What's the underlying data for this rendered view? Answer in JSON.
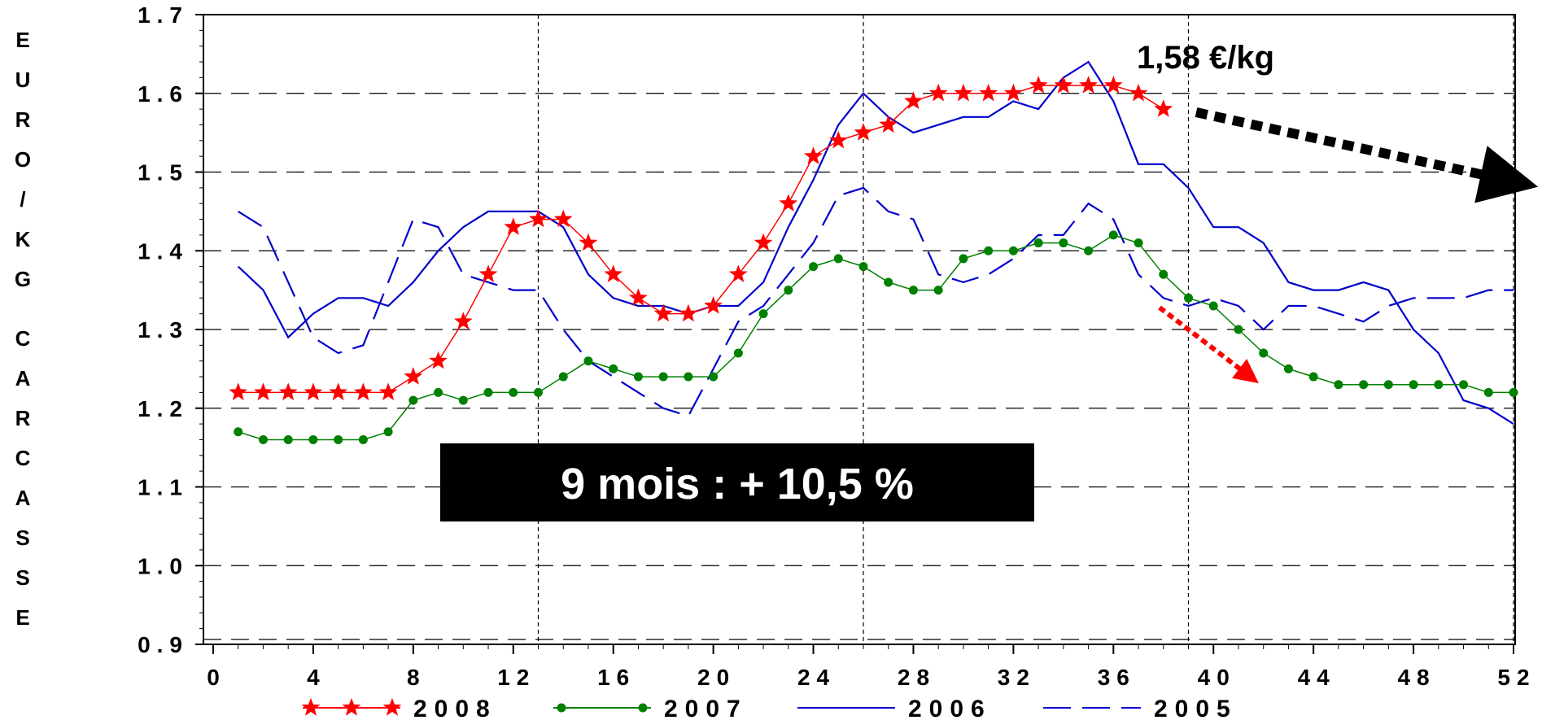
{
  "chart_data": {
    "type": "line",
    "ylabel": "EURO/KG CARCASSE",
    "xlim": [
      0,
      52
    ],
    "ylim": [
      0.9,
      1.7
    ],
    "x_ticks": [
      "0",
      "4",
      "8",
      "12",
      "16",
      "20",
      "24",
      "28",
      "32",
      "36",
      "40",
      "44",
      "48",
      "52"
    ],
    "y_ticks": [
      "0.9",
      "1.0",
      "1.1",
      "1.2",
      "1.3",
      "1.4",
      "1.5",
      "1.6",
      "1.7"
    ],
    "grid": {
      "horizontal": "dashed",
      "vertical_at": [
        13,
        26,
        39,
        52
      ]
    },
    "legend_position": "bottom",
    "series": [
      {
        "name": "2008",
        "color": "#ff0000",
        "marker": "star",
        "x": [
          1,
          2,
          3,
          4,
          5,
          6,
          7,
          8,
          9,
          10,
          11,
          12,
          13,
          14,
          15,
          16,
          17,
          18,
          19,
          20,
          21,
          22,
          23,
          24,
          25,
          26,
          27,
          28,
          29,
          30,
          31,
          32,
          33,
          34,
          35,
          36,
          37,
          38
        ],
        "values": [
          1.22,
          1.22,
          1.22,
          1.22,
          1.22,
          1.22,
          1.22,
          1.24,
          1.26,
          1.31,
          1.37,
          1.43,
          1.44,
          1.44,
          1.41,
          1.37,
          1.34,
          1.32,
          1.32,
          1.33,
          1.37,
          1.41,
          1.46,
          1.52,
          1.54,
          1.55,
          1.56,
          1.59,
          1.6,
          1.6,
          1.6,
          1.6,
          1.61,
          1.61,
          1.61,
          1.61,
          1.6,
          1.58
        ]
      },
      {
        "name": "2007",
        "color": "#008000",
        "marker": "dot",
        "x": [
          1,
          2,
          3,
          4,
          5,
          6,
          7,
          8,
          9,
          10,
          11,
          12,
          13,
          14,
          15,
          16,
          17,
          18,
          19,
          20,
          21,
          22,
          23,
          24,
          25,
          26,
          27,
          28,
          29,
          30,
          31,
          32,
          33,
          34,
          35,
          36,
          37,
          38,
          39,
          40,
          41,
          42,
          43,
          44,
          45,
          46,
          47,
          48,
          49,
          50,
          51,
          52
        ],
        "values": [
          1.17,
          1.16,
          1.16,
          1.16,
          1.16,
          1.16,
          1.17,
          1.21,
          1.22,
          1.21,
          1.22,
          1.22,
          1.22,
          1.24,
          1.26,
          1.25,
          1.24,
          1.24,
          1.24,
          1.24,
          1.27,
          1.32,
          1.35,
          1.38,
          1.39,
          1.38,
          1.36,
          1.35,
          1.35,
          1.39,
          1.4,
          1.4,
          1.41,
          1.41,
          1.4,
          1.42,
          1.41,
          1.37,
          1.34,
          1.33,
          1.3,
          1.27,
          1.25,
          1.24,
          1.23,
          1.23,
          1.23,
          1.23,
          1.23,
          1.23,
          1.22,
          1.22
        ]
      },
      {
        "name": "2006",
        "color": "#0000cc",
        "marker": "none",
        "dash": "solid",
        "x": [
          1,
          2,
          3,
          4,
          5,
          6,
          7,
          8,
          9,
          10,
          11,
          12,
          13,
          14,
          15,
          16,
          17,
          18,
          19,
          20,
          21,
          22,
          23,
          24,
          25,
          26,
          27,
          28,
          29,
          30,
          31,
          32,
          33,
          34,
          35,
          36,
          37,
          38,
          39,
          40,
          41,
          42,
          43,
          44,
          45,
          46,
          47,
          48,
          49,
          50,
          51,
          52
        ],
        "values": [
          1.38,
          1.35,
          1.29,
          1.32,
          1.34,
          1.34,
          1.33,
          1.36,
          1.4,
          1.43,
          1.45,
          1.45,
          1.45,
          1.43,
          1.37,
          1.34,
          1.33,
          1.33,
          1.32,
          1.33,
          1.33,
          1.36,
          1.43,
          1.49,
          1.56,
          1.6,
          1.57,
          1.55,
          1.56,
          1.57,
          1.57,
          1.59,
          1.58,
          1.62,
          1.64,
          1.59,
          1.51,
          1.51,
          1.48,
          1.43,
          1.43,
          1.41,
          1.36,
          1.35,
          1.35,
          1.36,
          1.35,
          1.3,
          1.27,
          1.21,
          1.2,
          1.18
        ]
      },
      {
        "name": "2005",
        "color": "#0000cc",
        "marker": "none",
        "dash": "long-dash",
        "x": [
          1,
          2,
          3,
          4,
          5,
          6,
          7,
          8,
          9,
          10,
          11,
          12,
          13,
          14,
          15,
          16,
          17,
          18,
          19,
          20,
          21,
          22,
          23,
          24,
          25,
          26,
          27,
          28,
          29,
          30,
          31,
          32,
          33,
          34,
          35,
          36,
          37,
          38,
          39,
          40,
          41,
          42,
          43,
          44,
          45,
          46,
          47,
          48,
          49,
          50,
          51,
          52
        ],
        "values": [
          1.45,
          1.43,
          1.36,
          1.29,
          1.27,
          1.28,
          1.36,
          1.44,
          1.43,
          1.37,
          1.36,
          1.35,
          1.35,
          1.3,
          1.26,
          1.24,
          1.22,
          1.2,
          1.19,
          1.25,
          1.31,
          1.33,
          1.37,
          1.41,
          1.47,
          1.48,
          1.45,
          1.44,
          1.37,
          1.36,
          1.37,
          1.39,
          1.42,
          1.42,
          1.46,
          1.44,
          1.37,
          1.34,
          1.33,
          1.34,
          1.33,
          1.3,
          1.33,
          1.33,
          1.32,
          1.31,
          1.33,
          1.34,
          1.34,
          1.34,
          1.35,
          1.35
        ]
      }
    ],
    "annotations": {
      "price_label": "1,58 €/kg",
      "box_label": "9 mois : + 10,5 %"
    }
  }
}
